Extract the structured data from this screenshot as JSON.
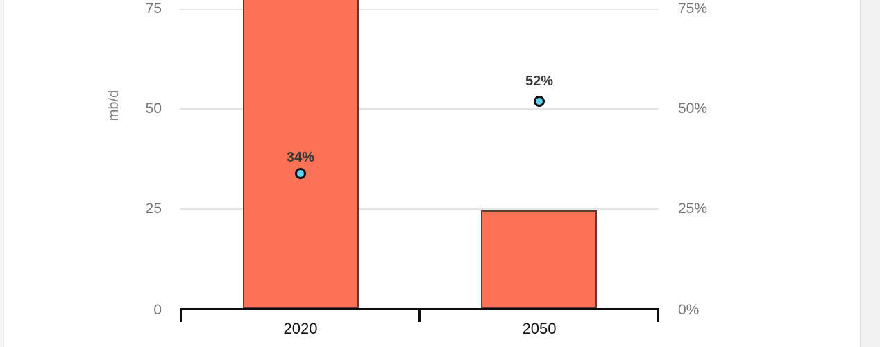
{
  "chart_data": {
    "type": "bar",
    "subtype": "bar-with-scatter-overlay",
    "categories": [
      "2020",
      "2050"
    ],
    "series": [
      {
        "name": "bar-series-mbd",
        "type": "bar",
        "axis": "left",
        "values": [
          null,
          24.4
        ],
        "note": "2020 bar is cropped at the top of the screenshot; visible portion exceeds 77 mb/d"
      },
      {
        "name": "scatter-series-percent",
        "type": "scatter",
        "axis": "right",
        "values": [
          34,
          52
        ],
        "labels": [
          "34%",
          "52%"
        ]
      }
    ],
    "title": "",
    "xlabel": "",
    "ylabel": "mb/d",
    "left_axis": {
      "label": "mb/d",
      "ticks_display": [
        "75",
        "50",
        "25",
        "0"
      ],
      "ticks_values": [
        75,
        50,
        25,
        0
      ],
      "visible_range": [
        0,
        77
      ]
    },
    "right_axis": {
      "ticks_display": [
        "75%",
        "50%",
        "25%",
        "0%"
      ],
      "ticks_values": [
        75,
        50,
        25,
        0
      ],
      "visible_range": [
        0,
        77
      ]
    },
    "grid": true,
    "legend_position": "none"
  },
  "colors": {
    "bar_fill": "#fc7256",
    "bar_stroke": "#5f3a30",
    "marker_fill": "#5fd0f0",
    "marker_stroke": "#101010",
    "gridline": "#e4e4e4",
    "axis_line": "#0d0d0d",
    "tick_label": "#767676",
    "category_label": "#141414",
    "point_label": "#383838",
    "page_bg": "#ffffff",
    "side_strip": "#f2f2f2",
    "edge_line": "#dcdcdc"
  }
}
